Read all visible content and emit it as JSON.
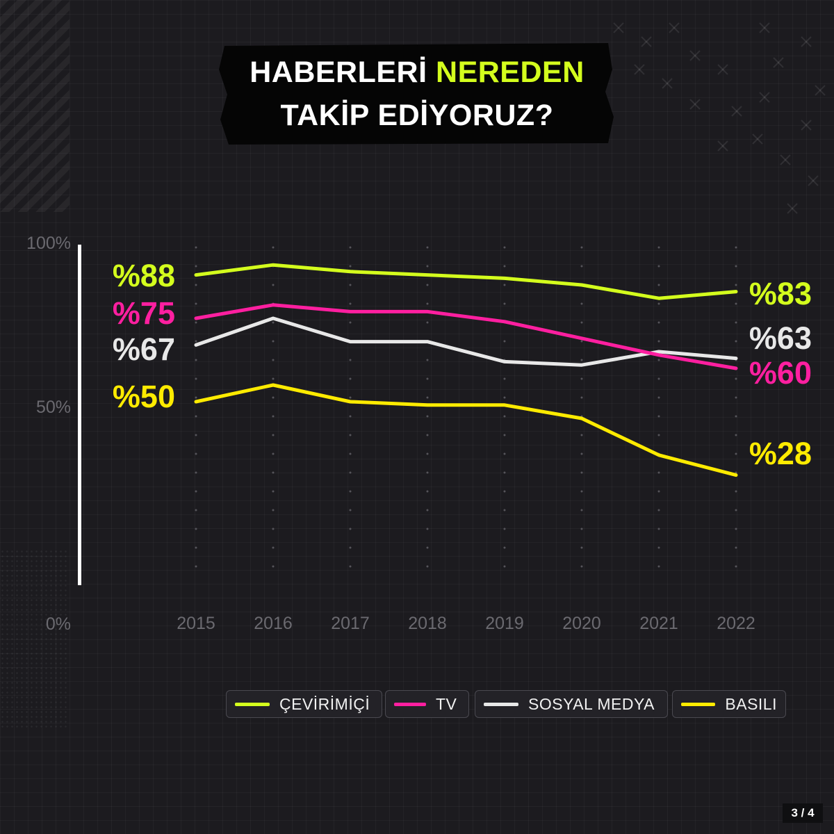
{
  "title": {
    "line1_pre": "HABERLERİ ",
    "line1_accent": "NEREDEN",
    "line2": "TAKİP EDİYORUZ?"
  },
  "pager": "3 / 4",
  "colors": {
    "background": "#1c1b1f",
    "accent": "#d4ff1d",
    "online": "#d4ff1d",
    "tv": "#ff1fa0",
    "social": "#e8e8e8",
    "print": "#ffeb00",
    "axis_text": "#6b6a70"
  },
  "chart_data": {
    "type": "line",
    "x": [
      2015,
      2016,
      2017,
      2018,
      2019,
      2020,
      2021,
      2022
    ],
    "ylim": [
      0,
      100
    ],
    "yticks": [
      "100%",
      "50%",
      "0%"
    ],
    "grid": "dotted vertical",
    "legend_position": "bottom-right",
    "series": [
      {
        "name": "ÇEVİRİMİÇİ",
        "key": "online",
        "values": [
          88,
          91,
          89,
          88,
          87,
          85,
          81,
          83
        ],
        "start_label": "%88",
        "end_label": "%83"
      },
      {
        "name": "TV",
        "key": "tv",
        "values": [
          75,
          79,
          77,
          77,
          74,
          69,
          64,
          60
        ],
        "start_label": "%75",
        "end_label": "%60"
      },
      {
        "name": "SOSYAL MEDYA",
        "key": "social",
        "values": [
          67,
          75,
          68,
          68,
          62,
          61,
          65,
          63
        ],
        "start_label": "%67",
        "end_label": "%63"
      },
      {
        "name": "BASILI",
        "key": "print",
        "values": [
          50,
          55,
          50,
          49,
          49,
          45,
          34,
          28
        ],
        "start_label": "%50",
        "end_label": "%28"
      }
    ]
  }
}
